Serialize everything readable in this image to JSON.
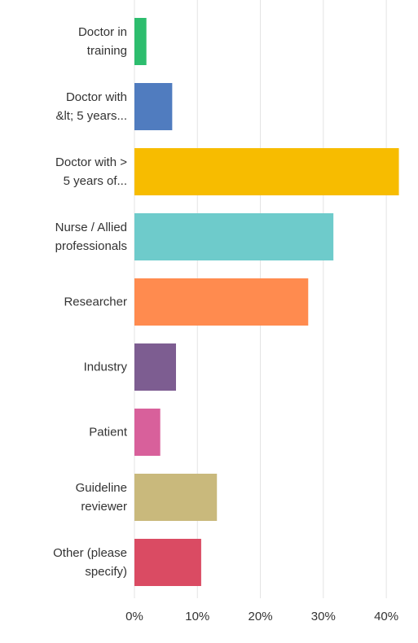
{
  "chart_data": {
    "type": "bar",
    "orientation": "horizontal",
    "categories": [
      "Doctor in\ntraining",
      "Doctor with\n&lt; 5 years...",
      "Doctor with >\n5 years of...",
      "Nurse / Allied\nprofessionals",
      "Researcher",
      "Industry",
      "Patient",
      "Guideline\nreviewer",
      "Other (please\nspecify)"
    ],
    "values": [
      1.9,
      6.0,
      42.0,
      31.6,
      27.6,
      6.6,
      4.1,
      13.1,
      10.6
    ],
    "colors": [
      "#2dbd6e",
      "#507cbf",
      "#f7bc00",
      "#6ecbcb",
      "#ff8b4f",
      "#7d5d91",
      "#d8609b",
      "#c9b97c",
      "#da4b63"
    ],
    "xlim": [
      0,
      44
    ],
    "xticks": [
      {
        "value": 0,
        "label": "0%"
      },
      {
        "value": 10,
        "label": "10%"
      },
      {
        "value": 20,
        "label": "20%"
      },
      {
        "value": 30,
        "label": "30%"
      },
      {
        "value": 40,
        "label": "40%"
      }
    ],
    "grid": true
  }
}
